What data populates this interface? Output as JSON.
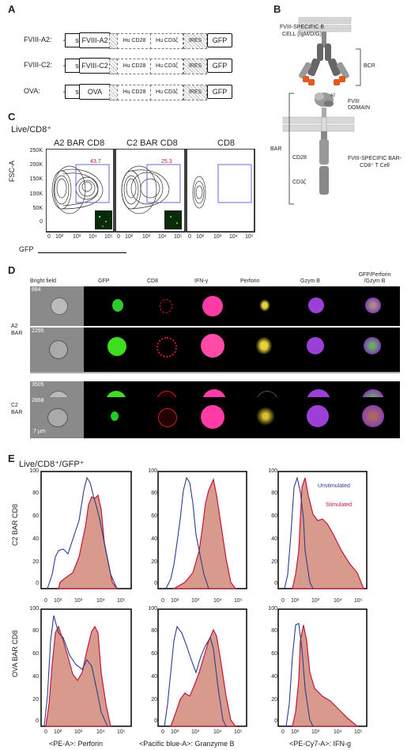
{
  "panels": {
    "a": "A",
    "b": "B",
    "c": "C",
    "d": "D",
    "e": "E"
  },
  "constructs": {
    "rows": [
      {
        "label": "FVIII-A2:",
        "sp": "sp",
        "antigen": "FVIII-A2",
        "cd28": "Hu CD28",
        "cd3": "Hu CD3ζ",
        "ires": "IRES",
        "gfp": "GFP"
      },
      {
        "label": "FVIII-C2:",
        "sp": "sp",
        "antigen": "FVIII-C2",
        "cd28": "Hu CD28",
        "cd3": "Hu CD3ζ",
        "ires": "IRES",
        "gfp": "GFP"
      },
      {
        "label": "OVA:",
        "sp": "sp",
        "antigen": "OVA",
        "cd28": "Hu CD28",
        "cd3": "Hu CD3ζ",
        "ires": "IRES",
        "gfp": "GFP"
      }
    ]
  },
  "schematic": {
    "bcell_label": "FVIII-SPECIFIC B CELL (IgM/D/G)",
    "bcr": "BCR",
    "domain": "FVIII DOMAIN",
    "a2": "A2",
    "bar": "BAR",
    "cd28": "CD28",
    "cd3": "CD3ζ",
    "tcell": "FVIII-SPECIFIC BAR-CD8⁺ T Cell"
  },
  "flow": {
    "gate": "Live/CD8⁺",
    "ylabel": "FSC-A",
    "xlabel": "GFP",
    "yticks": [
      "250K",
      "200K",
      "150K",
      "100K",
      "50K",
      "0"
    ],
    "xticks": [
      "0",
      "10²",
      "10³",
      "10⁴",
      "10⁵"
    ],
    "plots": [
      {
        "title": "A2 BAR CD8",
        "percent": "43.7"
      },
      {
        "title": "C2 BAR CD8",
        "percent": "25.3"
      },
      {
        "title": "CD8",
        "percent": ""
      }
    ]
  },
  "imaging": {
    "columns": [
      "Bright field",
      "GFP",
      "CD8",
      "IFN-γ",
      "Perforin",
      "Gzym B",
      "GFP/Perforin /Gzym B"
    ],
    "groups": [
      {
        "label": "A2 BAR",
        "ids": [
          "884",
          "2295"
        ]
      },
      {
        "label": "C2 BAR",
        "ids": [
          "3505",
          "2868"
        ]
      }
    ],
    "scale": "7 µm"
  },
  "histograms": {
    "gate": "Live/CD8⁺/GFP⁺",
    "legend": {
      "unstim": "Unstimulated",
      "stim": "Stimulated"
    },
    "row_labels": [
      "C2 BAR CD8",
      "OVA BAR CD8"
    ],
    "yticks": [
      "100",
      "80",
      "60",
      "40",
      "20",
      "0"
    ],
    "xticks": [
      "0",
      "10²",
      "10³",
      "10⁴",
      "10⁵"
    ],
    "xlabels": [
      "<PE-A>: Perforin",
      "<Pacific blue-A>: Granzyme B",
      "<PE-Cy7-A>: IFN-g"
    ],
    "colors": {
      "unstim": "#2a3f8a",
      "stim": "#c0173a",
      "stim_fill": "#d99a8e"
    }
  }
}
